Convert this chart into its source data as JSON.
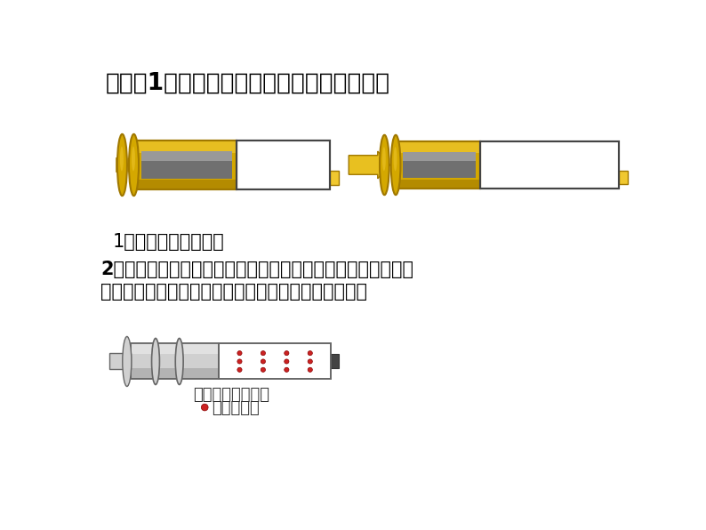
{
  "title": "【探究1：给密封在针筒中的水加热至沸腾】",
  "title_color": "#000000",
  "title_fontsize": 19,
  "bg_color": "#ffffff",
  "q1_text": "1、会看到什么现象？",
  "q2_text_line1": "2、封闭在针筒中的水沸腾后，体积会明显增大。这个过程中，",
  "q2_text_line2": "水分子发生了什么变化？（请同学们提出自己的猜想）",
  "label1": "封闭在针筒中的水",
  "label2": "表示水分子",
  "gold_bright": "#F0C830",
  "gold_mid": "#D4A800",
  "gold_dark": "#A07800",
  "gray_dark": "#606060",
  "gray_mid": "#909090",
  "gray_light": "#C0C0C0",
  "white": "#FFFFFF",
  "molecule_color": "#CC2222",
  "arrow_color": "#E8C020"
}
